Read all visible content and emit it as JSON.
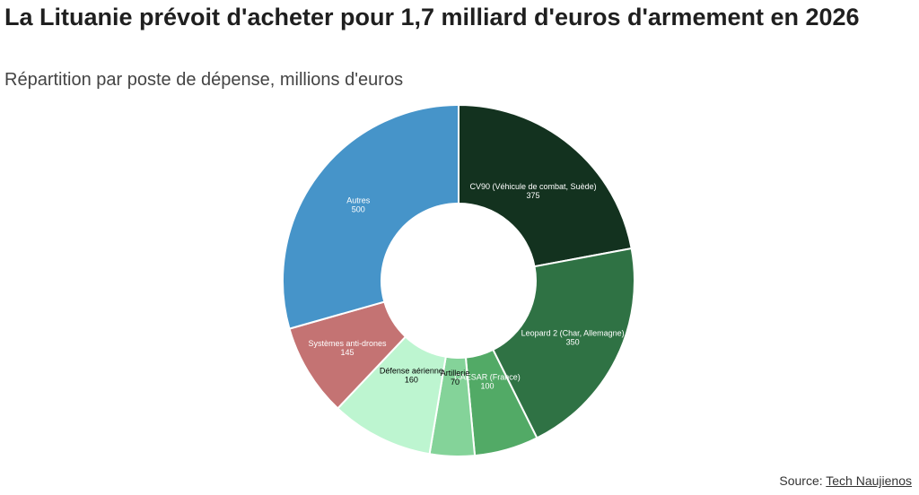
{
  "header": {
    "title": "La Lituanie prévoit d'acheter pour 1,7 milliard d'euros d'armement en 2026",
    "subtitle": "Répartition par poste de dépense, millions d'euros"
  },
  "source": {
    "prefix": "Source:",
    "link": "Tech Naujienos"
  },
  "chart_data": {
    "type": "pie",
    "donut": true,
    "title": "La Lituanie prévoit d'acheter pour 1,7 milliard d'euros d'armement en 2026",
    "subtitle": "Répartition par poste de dépense, millions d'euros",
    "categories": [
      "CV90 (Véhicule de combat, Suède)",
      "Leopard 2 (Char, Allemagne)",
      "CAESAR (France)",
      "Artillerie",
      "Défense aérienne",
      "Systèmes anti-drones",
      "Autres"
    ],
    "values": [
      375,
      350,
      100,
      70,
      160,
      145,
      500
    ],
    "colors": [
      "#13321f",
      "#2f7244",
      "#52aa66",
      "#84d399",
      "#bdf5d0",
      "#c47373",
      "#4694c9"
    ],
    "label_colors": [
      "#ffffff",
      "#ffffff",
      "#ffffff",
      "#000000",
      "#000000",
      "#ffffff",
      "#ffffff"
    ]
  }
}
